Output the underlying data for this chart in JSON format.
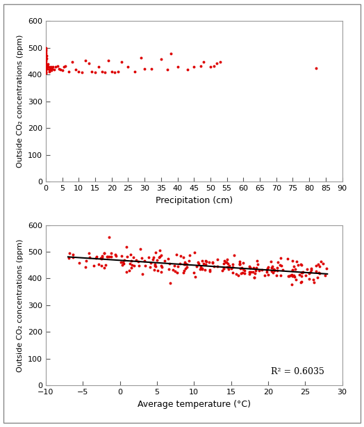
{
  "plot1": {
    "xlabel": "Precipitation (cm)",
    "ylabel": "Outside CO₂ concentrations (ppm)",
    "xlim": [
      0,
      90
    ],
    "ylim": [
      0,
      600
    ],
    "xticks": [
      0,
      5,
      10,
      15,
      20,
      25,
      30,
      35,
      40,
      45,
      50,
      55,
      60,
      65,
      70,
      75,
      80,
      85,
      90
    ],
    "yticks": [
      0,
      100,
      200,
      300,
      400,
      500,
      600
    ],
    "scatter_color": "#dd0000",
    "scatter_x": [
      0.0,
      0.0,
      0.0,
      0.0,
      0.0,
      0.0,
      0.0,
      0.0,
      0.0,
      0.0,
      0.0,
      0.0,
      0.0,
      0.0,
      0.0,
      0.0,
      0.0,
      0.1,
      0.1,
      0.2,
      0.2,
      0.3,
      0.5,
      0.5,
      0.7,
      0.8,
      1.0,
      1.0,
      1.2,
      1.5,
      1.8,
      2.0,
      2.2,
      2.5,
      3.0,
      3.5,
      4.0,
      4.5,
      5.0,
      5.5,
      6.0,
      7.0,
      8.0,
      9.0,
      10.0,
      11.0,
      12.0,
      13.0,
      14.0,
      15.0,
      16.0,
      17.0,
      18.0,
      19.0,
      20.0,
      21.0,
      22.0,
      23.0,
      25.0,
      27.0,
      29.0,
      30.0,
      32.0,
      35.0,
      37.0,
      38.0,
      40.0,
      43.0,
      45.0,
      47.0,
      48.0,
      50.0,
      51.0,
      52.0,
      53.0,
      82.0
    ],
    "scatter_y": [
      405,
      408,
      412,
      418,
      422,
      428,
      433,
      438,
      443,
      450,
      458,
      465,
      472,
      480,
      488,
      495,
      500,
      420,
      455,
      460,
      470,
      430,
      435,
      420,
      440,
      428,
      412,
      418,
      425,
      430,
      415,
      422,
      428,
      418,
      428,
      432,
      422,
      418,
      415,
      428,
      432,
      412,
      448,
      418,
      412,
      408,
      452,
      442,
      412,
      408,
      428,
      412,
      408,
      452,
      412,
      408,
      412,
      448,
      428,
      412,
      462,
      422,
      422,
      458,
      418,
      478,
      428,
      418,
      428,
      432,
      448,
      428,
      432,
      442,
      448,
      425
    ]
  },
  "plot2": {
    "xlabel": "Average temperature (°C)",
    "ylabel": "Outside CO₂ concentrations (ppm)",
    "xlim": [
      -10,
      30
    ],
    "ylim": [
      0,
      600
    ],
    "xticks": [
      -10,
      -5,
      0,
      5,
      10,
      15,
      20,
      25,
      30
    ],
    "yticks": [
      0,
      100,
      200,
      300,
      400,
      500,
      600
    ],
    "scatter_color": "#dd0000",
    "r_squared": "R² = 0.6035",
    "trendline_color": "#000000",
    "trend_slope": -1.82,
    "trend_intercept": 468.0,
    "trend_x_start": -7.0,
    "trend_x_end": 28.0
  },
  "figsize": [
    5.24,
    6.14
  ],
  "dpi": 100
}
